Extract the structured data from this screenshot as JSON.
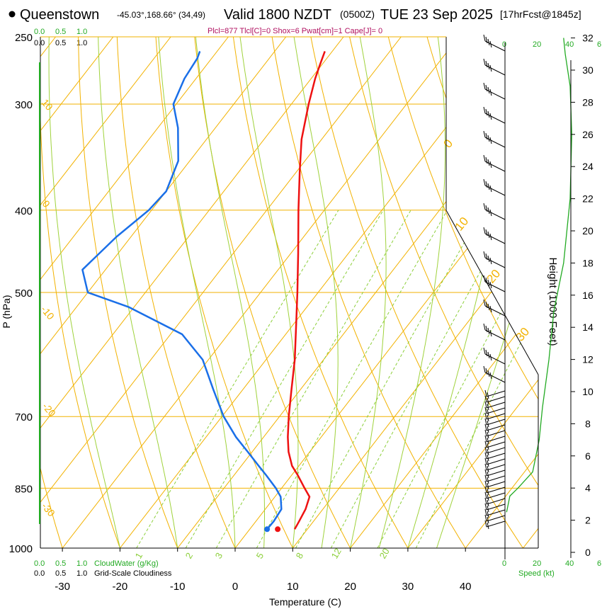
{
  "header": {
    "station": "Queenstown",
    "coords": "-45.03°,168.66° (34,49)",
    "valid": "Valid 1800 NZDT",
    "zulu": "(0500Z)",
    "date": "TUE 23 Sep 2025",
    "forecast": "[17hrFcst@1845z]",
    "params": "Plcl=877 Tlcl[C]=0 Shox=6 Pwat[cm]=1 Cape[J]= 0"
  },
  "legend": {
    "cloudwater_label": "CloudWater (g/Kg)",
    "cloudiness_label": "Grid-Scale Cloudiness",
    "scale_green": [
      "0.0",
      "0.5",
      "1.0"
    ],
    "scale_black": [
      "0.0",
      "0.5",
      "1.0"
    ],
    "speed_label": "Speed (kt)",
    "speed_ticks": [
      "0",
      "20",
      "40",
      "6"
    ]
  },
  "colors": {
    "temperature": "#ee1111",
    "dewpoint": "#1a6fe8",
    "isotherm": "#f2b200",
    "dry_adiabat": "#f2b200",
    "moist_adiabat": "#9fd23b",
    "mixing_ratio": "#8ccf3a",
    "wind_profile": "#22aa22"
  },
  "chart_data": {
    "type": "line",
    "subtype": "skew-T log-P sounding",
    "xlabel": "Temperature (C)",
    "ylabel": "P (hPa)",
    "y2label": "Height (1000 Feet)",
    "x_ticks": [
      -30,
      -20,
      -10,
      0,
      10,
      20,
      30,
      40
    ],
    "xlim": [
      -33,
      36
    ],
    "pressure_ticks": [
      250,
      300,
      400,
      500,
      700,
      850,
      1000
    ],
    "plim": [
      250,
      1000
    ],
    "height_ticks": [
      0,
      2,
      4,
      6,
      8,
      10,
      12,
      14,
      16,
      18,
      20,
      22,
      24,
      26,
      28,
      30,
      32
    ],
    "isotherm_labels": [
      0,
      10,
      20,
      30
    ],
    "dry_adiabat_labels": [
      10,
      0,
      -10,
      -20,
      -30
    ],
    "mixing_ratio_labels": [
      "1",
      "2",
      "3",
      "5",
      "8",
      "12",
      "20"
    ],
    "series": [
      {
        "name": "Temperature",
        "pressure": [
          950,
          930,
          900,
          870,
          850,
          820,
          800,
          770,
          740,
          700,
          650,
          600,
          550,
          500,
          450,
          400,
          360,
          330,
          300,
          280,
          270,
          260
        ],
        "temperature": [
          7.8,
          7.5,
          7.0,
          6.0,
          4.0,
          1.0,
          -1.2,
          -3.7,
          -5.8,
          -8.4,
          -11.6,
          -15.0,
          -19.1,
          -23.6,
          -28.7,
          -34.5,
          -39.5,
          -43.5,
          -47.0,
          -49.3,
          -50.3,
          -51.3
        ]
      },
      {
        "name": "Dewpoint",
        "pressure": [
          950,
          930,
          900,
          870,
          850,
          820,
          800,
          770,
          740,
          700,
          650,
          600,
          560,
          520,
          500,
          470,
          430,
          400,
          380,
          350,
          320,
          300,
          280,
          265,
          260
        ],
        "dewpoint": [
          3.0,
          3.1,
          2.8,
          1.0,
          -1.0,
          -4.5,
          -7.0,
          -10.8,
          -14.8,
          -19.7,
          -25.2,
          -31.0,
          -38.0,
          -51.0,
          -60.0,
          -64.0,
          -62.5,
          -60.5,
          -60.0,
          -62.0,
          -66.5,
          -70.5,
          -72.0,
          -72.5,
          -73.0
        ]
      }
    ],
    "wind_profile_kt": {
      "height_kft": [
        2.5,
        3.0,
        3.5,
        4.0,
        5.0,
        7.0,
        9.0,
        12.0,
        15.0,
        18.0,
        22.0,
        26.0,
        29.0,
        31.0,
        32.0
      ],
      "speed": [
        1,
        2,
        3,
        8,
        17,
        21,
        23,
        27,
        30,
        36,
        40,
        41,
        40,
        37,
        36
      ]
    }
  }
}
